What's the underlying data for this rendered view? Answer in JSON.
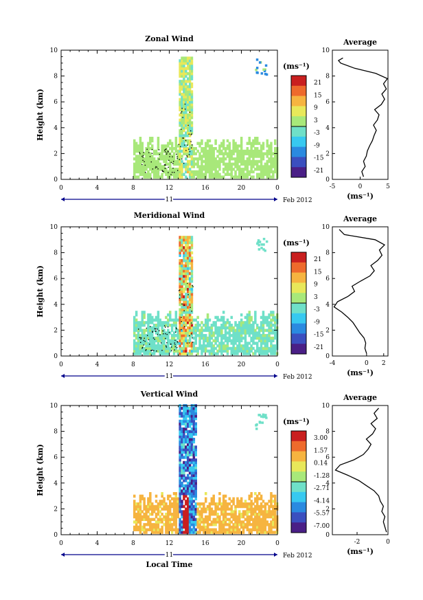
{
  "figure": {
    "date_label": "Feb 2012",
    "day_label": "11",
    "xlabel_bottom": "Local Time",
    "colors": {
      "colormap": [
        "#4a1f86",
        "#3b4fbf",
        "#2a8ae0",
        "#37c9f0",
        "#6fe0c8",
        "#a8e87a",
        "#e8e85a",
        "#f6b440",
        "#ee6a2c",
        "#c91f1f"
      ]
    }
  },
  "chart_data": [
    {
      "type": "heatmap",
      "title": "Zonal Wind",
      "ylabel": "Height (km)",
      "x_ticks": [
        "0",
        "4",
        "8",
        "12",
        "16",
        "20",
        "0"
      ],
      "xlim": [
        0,
        24
      ],
      "y_ticks": [
        "0",
        "2",
        "4",
        "6",
        "8",
        "10"
      ],
      "ylim": [
        0,
        10
      ],
      "colorbar": {
        "unit": "(ms⁻¹)",
        "labels": [
          "21",
          "15",
          "9",
          "3",
          "-3",
          "-9",
          "-15",
          "-21"
        ],
        "range": [
          -24,
          24
        ]
      },
      "echo_region": {
        "hours": [
          8,
          24
        ],
        "base_top_km": 3.0,
        "plume_hours": [
          13.0,
          14.5
        ],
        "plume_top_km": 9.4
      },
      "profile": {
        "title": "Average",
        "xlabel": "(ms⁻¹)",
        "x_ticks": [
          "-5",
          "0",
          "5"
        ],
        "xlim": [
          -5,
          5
        ],
        "y_ticks": [
          "0",
          "2",
          "4",
          "6",
          "8",
          "10"
        ],
        "height_km": [
          0.2,
          0.6,
          1.0,
          1.4,
          1.8,
          2.2,
          2.6,
          3.0,
          3.4,
          3.8,
          4.2,
          4.6,
          5.0,
          5.4,
          5.8,
          6.2,
          6.6,
          7.0,
          7.4,
          7.8,
          8.2,
          8.6,
          9.0,
          9.2,
          9.4
        ],
        "mean_ms": [
          0.6,
          0.3,
          0.9,
          0.6,
          1.1,
          1.3,
          1.7,
          2.2,
          2.5,
          2.9,
          2.4,
          3.1,
          3.4,
          2.6,
          3.8,
          4.4,
          3.9,
          4.7,
          4.2,
          4.9,
          2.8,
          -1.0,
          -3.5,
          -3.9,
          -3.1
        ]
      }
    },
    {
      "type": "heatmap",
      "title": "Meridional Wind",
      "ylabel": "Height (km)",
      "x_ticks": [
        "0",
        "4",
        "8",
        "12",
        "16",
        "20",
        "0"
      ],
      "xlim": [
        0,
        24
      ],
      "y_ticks": [
        "0",
        "2",
        "4",
        "6",
        "8",
        "10"
      ],
      "ylim": [
        0,
        10
      ],
      "colorbar": {
        "unit": "(ms⁻¹)",
        "labels": [
          "21",
          "15",
          "9",
          "3",
          "-3",
          "-9",
          "-15",
          "-21"
        ],
        "range": [
          -24,
          24
        ]
      },
      "echo_region": {
        "hours": [
          8,
          24
        ],
        "base_top_km": 3.2,
        "plume_hours": [
          13.0,
          14.6
        ],
        "plume_top_km": 9.3
      },
      "profile": {
        "title": "Average",
        "xlabel": "(ms⁻¹)",
        "x_ticks": [
          "-4",
          "0",
          "2"
        ],
        "xlim": [
          -4,
          2.5
        ],
        "y_ticks": [
          "0",
          "2",
          "4",
          "6",
          "8",
          "10"
        ],
        "height_km": [
          0.2,
          0.6,
          1.0,
          1.4,
          1.8,
          2.2,
          2.6,
          3.0,
          3.4,
          3.8,
          4.2,
          4.6,
          5.0,
          5.4,
          5.8,
          6.2,
          6.6,
          7.0,
          7.4,
          7.8,
          8.2,
          8.6,
          9.0,
          9.4,
          9.8
        ],
        "mean_ms": [
          0.0,
          -0.2,
          -0.1,
          -0.3,
          -0.8,
          -1.2,
          -1.6,
          -2.2,
          -2.9,
          -3.8,
          -3.4,
          -2.2,
          -1.4,
          -1.7,
          -0.7,
          0.4,
          0.9,
          0.5,
          1.3,
          1.8,
          1.5,
          2.1,
          1.0,
          -2.6,
          -3.2
        ]
      }
    },
    {
      "type": "heatmap",
      "title": "Vertical Wind",
      "ylabel": "Height (km)",
      "xlabel": "Local Time",
      "x_ticks": [
        "0",
        "4",
        "8",
        "12",
        "16",
        "20",
        "0"
      ],
      "xlim": [
        0,
        24
      ],
      "y_ticks": [
        "0",
        "2",
        "4",
        "6",
        "8",
        "10"
      ],
      "ylim": [
        0,
        10
      ],
      "colorbar": {
        "unit": "(ms⁻¹)",
        "labels": [
          "3.00",
          "1.57",
          "0.14",
          "-1.28",
          "-2.71",
          "-4.14",
          "-5.57",
          "-7.00"
        ],
        "range": [
          -7.7,
          3.7
        ]
      },
      "echo_region": {
        "hours": [
          8,
          24
        ],
        "base_top_km": 3.0,
        "plume_hours": [
          13.0,
          15.0
        ],
        "plume_top_km": 10.0
      },
      "profile": {
        "title": "Average",
        "xlabel": "(ms⁻¹)",
        "x_ticks": [
          "-2",
          "0"
        ],
        "xlim": [
          -3.6,
          0
        ],
        "y_ticks": [
          "0",
          "2",
          "4",
          "6",
          "8",
          "10"
        ],
        "height_km": [
          0.2,
          0.6,
          1.0,
          1.4,
          1.8,
          2.2,
          2.6,
          3.0,
          3.4,
          3.8,
          4.2,
          4.6,
          5.0,
          5.4,
          5.8,
          6.2,
          6.6,
          7.0,
          7.4,
          7.8,
          8.2,
          8.6,
          9.0,
          9.4,
          9.8
        ],
        "mean_ms": [
          -0.1,
          -0.2,
          -0.3,
          -0.2,
          -0.4,
          -0.3,
          -0.5,
          -0.6,
          -0.9,
          -1.4,
          -1.9,
          -2.6,
          -3.4,
          -3.1,
          -2.2,
          -1.6,
          -1.3,
          -1.1,
          -1.4,
          -1.0,
          -0.8,
          -1.1,
          -0.7,
          -0.9,
          -0.6
        ]
      }
    }
  ]
}
